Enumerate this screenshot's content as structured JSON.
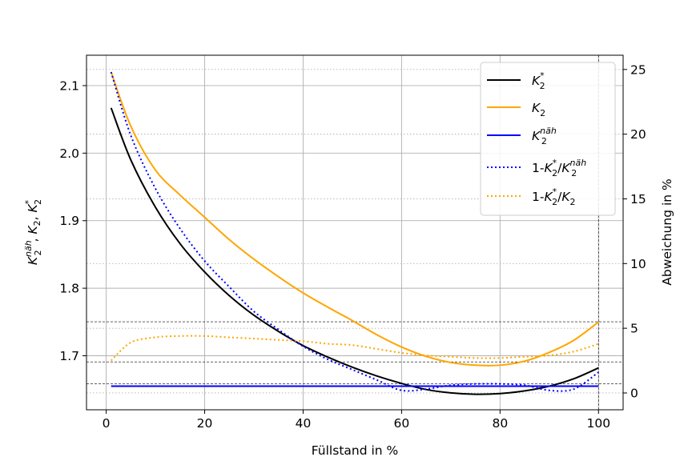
{
  "chart_data": {
    "type": "line",
    "xlabel": "Füllstand in %",
    "ylabel_left": "K_2^näh , K_2, K_2^*",
    "ylabel_right": "Abweichung in %",
    "xlim": [
      -4,
      105
    ],
    "ylim_left": [
      1.62,
      2.145
    ],
    "ylim_right": [
      -1.3,
      26.1
    ],
    "x_ticks": [
      0,
      20,
      40,
      60,
      80,
      100
    ],
    "y_left_ticks": [
      1.7,
      1.8,
      1.9,
      2.0,
      2.1
    ],
    "y_right_ticks": [
      0,
      5,
      10,
      15,
      20,
      25
    ],
    "x_tick_labels": [
      "0",
      "20",
      "40",
      "60",
      "80",
      "100"
    ],
    "y_left_tick_labels": [
      "1.7",
      "1.8",
      "1.9",
      "2.0",
      "2.1"
    ],
    "y_right_tick_labels": [
      "0",
      "5",
      "10",
      "15",
      "20",
      "25"
    ],
    "grid": true,
    "legend_position": "top-right",
    "series": [
      {
        "name": "K2*",
        "axis": "left",
        "color": "#000000",
        "style": "solid",
        "x": [
          1,
          5,
          10,
          15,
          20,
          25,
          30,
          35,
          40,
          45,
          50,
          55,
          60,
          65,
          70,
          75,
          80,
          85,
          90,
          95,
          100
        ],
        "y": [
          2.067,
          1.99,
          1.92,
          1.866,
          1.824,
          1.789,
          1.76,
          1.736,
          1.715,
          1.698,
          1.683,
          1.67,
          1.659,
          1.65,
          1.645,
          1.643,
          1.644,
          1.648,
          1.655,
          1.666,
          1.682
        ]
      },
      {
        "name": "K2",
        "axis": "left",
        "color": "#ffa500",
        "style": "solid",
        "x": [
          1,
          5,
          10,
          15,
          20,
          25,
          30,
          35,
          40,
          45,
          50,
          55,
          60,
          65,
          70,
          75,
          80,
          85,
          90,
          95,
          100
        ],
        "y": [
          2.12,
          2.04,
          1.975,
          1.938,
          1.905,
          1.872,
          1.843,
          1.817,
          1.793,
          1.772,
          1.752,
          1.731,
          1.713,
          1.699,
          1.69,
          1.686,
          1.686,
          1.692,
          1.705,
          1.723,
          1.75
        ]
      },
      {
        "name": "K2näh",
        "axis": "left",
        "color": "#0000ff",
        "style": "solid",
        "x": [
          1,
          100
        ],
        "y": [
          1.655,
          1.655
        ]
      },
      {
        "name": "1-K2*/K2näh",
        "axis": "right",
        "color": "#0000ff",
        "style": "dotted",
        "x": [
          1,
          5,
          10,
          15,
          20,
          25,
          30,
          35,
          40,
          45,
          50,
          55,
          60,
          65,
          70,
          75,
          80,
          85,
          90,
          95,
          100
        ],
        "y": [
          24.8,
          19.9,
          15.8,
          12.7,
          10.2,
          8.2,
          6.3,
          4.9,
          3.6,
          2.6,
          1.8,
          1.0,
          0.2,
          0.3,
          0.6,
          0.7,
          0.7,
          0.6,
          0.2,
          0.3,
          1.6
        ]
      },
      {
        "name": "1-K2*/K2",
        "axis": "right",
        "color": "#ffa500",
        "style": "dotted",
        "x": [
          1,
          5,
          10,
          15,
          20,
          25,
          30,
          35,
          40,
          45,
          50,
          55,
          60,
          65,
          70,
          75,
          80,
          85,
          90,
          95,
          100
        ],
        "y": [
          2.5,
          3.9,
          4.3,
          4.4,
          4.4,
          4.3,
          4.2,
          4.1,
          4.0,
          3.8,
          3.7,
          3.4,
          3.1,
          2.9,
          2.8,
          2.7,
          2.7,
          2.8,
          2.9,
          3.2,
          3.8
        ]
      }
    ],
    "reference_lines": {
      "right_axis_y": [
        0.7,
        2.4,
        5.5
      ],
      "vertical_x": 100
    }
  }
}
